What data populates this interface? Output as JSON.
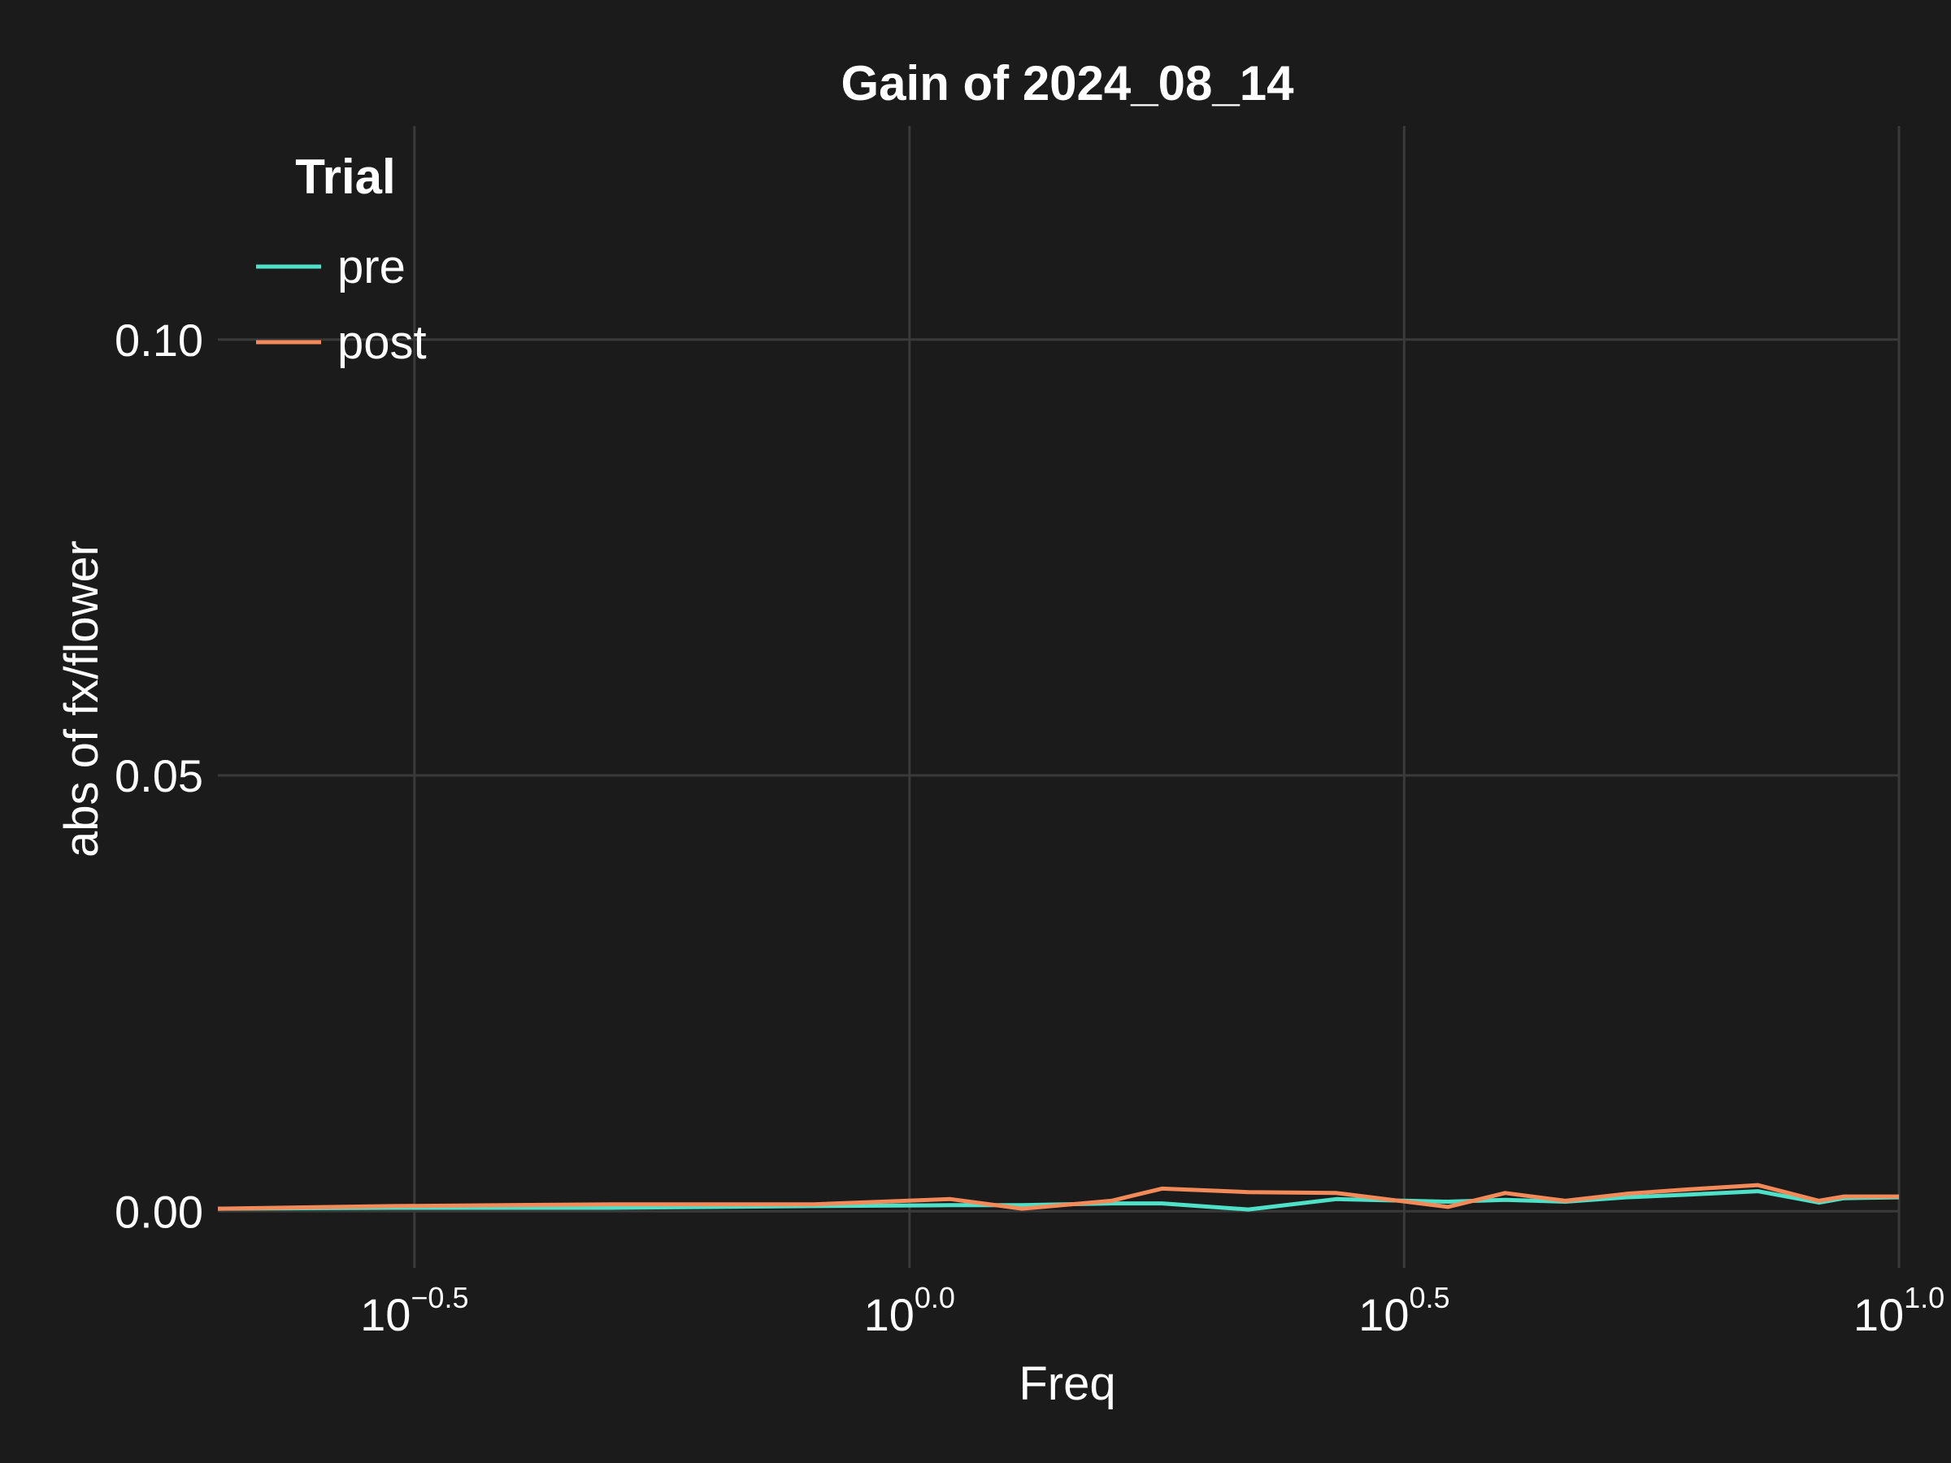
{
  "chart_data": {
    "type": "line",
    "title": "Gain of 2024_08_14",
    "xlabel": "Freq",
    "ylabel": "abs of fx/flower",
    "xscale": "log10",
    "xlim": [
      0.2,
      10
    ],
    "ylim": [
      -0.0065,
      0.1245
    ],
    "xticks": [
      {
        "value": 0.316,
        "base": "10",
        "exp": "−0.5"
      },
      {
        "value": 1,
        "base": "10",
        "exp": "0.0"
      },
      {
        "value": 3.162,
        "base": "10",
        "exp": "0.5"
      },
      {
        "value": 10,
        "base": "10",
        "exp": "1.0"
      }
    ],
    "yticks": [
      {
        "value": 0.0,
        "label": "0.00"
      },
      {
        "value": 0.05,
        "label": "0.05"
      },
      {
        "value": 0.1,
        "label": "0.10"
      }
    ],
    "grid": true,
    "legend": {
      "title": "Trial",
      "placement": "top-left"
    },
    "series": [
      {
        "name": "pre",
        "color": "#4fe0c8",
        "x": [
          0.2,
          0.3,
          0.5,
          0.8,
          1.1,
          1.3,
          1.6,
          1.8,
          2.2,
          2.7,
          3.5,
          4.0,
          4.6,
          5.3,
          6.1,
          7.2,
          8.3,
          8.8,
          10.0
        ],
        "y": [
          0.0003,
          0.0004,
          0.0004,
          0.0006,
          0.0007,
          0.0007,
          0.0009,
          0.0009,
          0.0002,
          0.0014,
          0.0011,
          0.0013,
          0.0011,
          0.0016,
          0.0019,
          0.0023,
          0.001,
          0.0015,
          0.0016
        ]
      },
      {
        "name": "post",
        "color": "#f38a5a",
        "x": [
          0.2,
          0.3,
          0.5,
          0.8,
          1.1,
          1.3,
          1.6,
          1.8,
          2.2,
          2.7,
          3.5,
          4.0,
          4.6,
          5.3,
          6.1,
          7.2,
          8.3,
          8.8,
          10.0
        ],
        "y": [
          0.0003,
          0.0006,
          0.0008,
          0.0008,
          0.0014,
          0.0003,
          0.0012,
          0.0026,
          0.0022,
          0.0021,
          0.0005,
          0.0021,
          0.0012,
          0.002,
          0.0025,
          0.003,
          0.0012,
          0.0017,
          0.0017
        ]
      }
    ]
  }
}
